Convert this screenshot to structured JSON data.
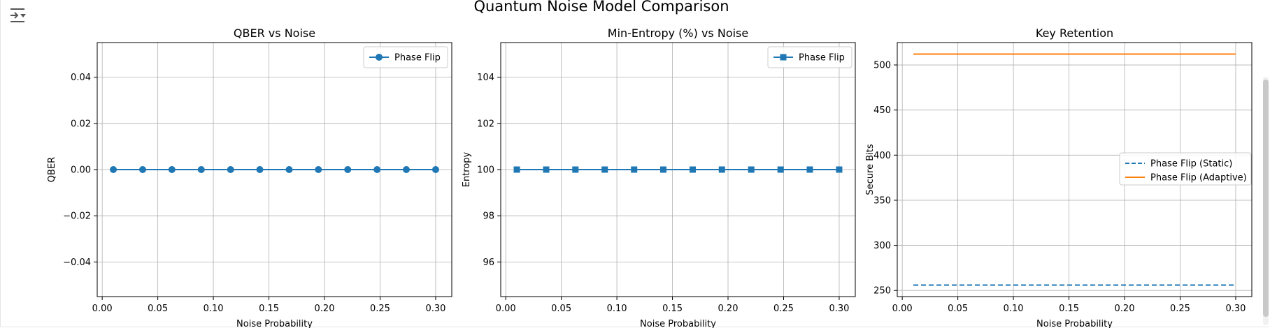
{
  "figure": {
    "suptitle": "Quantum Noise Model Comparison",
    "toolbar_icon": "output-collapse-icon"
  },
  "chart_data": [
    {
      "type": "line",
      "title": "QBER vs Noise",
      "xlabel": "Noise Probability",
      "ylabel": "QBER",
      "xlim": [
        -0.0045,
        0.3145
      ],
      "ylim": [
        -0.055,
        0.055
      ],
      "xticks": [
        0.0,
        0.05,
        0.1,
        0.15,
        0.2,
        0.25,
        0.3
      ],
      "yticks": [
        -0.04,
        -0.02,
        0.0,
        0.02,
        0.04
      ],
      "xtick_labels": [
        "0.00",
        "0.05",
        "0.10",
        "0.15",
        "0.20",
        "0.25",
        "0.30"
      ],
      "ytick_labels": [
        "−0.04",
        "−0.02",
        "0.00",
        "0.02",
        "0.04"
      ],
      "grid": true,
      "legend": "upper right",
      "x": [
        0.01,
        0.0364,
        0.0627,
        0.0891,
        0.1155,
        0.1418,
        0.1682,
        0.1945,
        0.2209,
        0.2473,
        0.2736,
        0.3
      ],
      "series": [
        {
          "name": "Phase Flip",
          "color": "#1f77b4",
          "marker": "circle",
          "linestyle": "solid",
          "values": [
            0,
            0,
            0,
            0,
            0,
            0,
            0,
            0,
            0,
            0,
            0,
            0
          ]
        }
      ]
    },
    {
      "type": "line",
      "title": "Min-Entropy (%) vs Noise",
      "xlabel": "Noise Probability",
      "ylabel": "Entropy",
      "xlim": [
        -0.0045,
        0.3145
      ],
      "ylim": [
        94.5,
        105.5
      ],
      "xticks": [
        0.0,
        0.05,
        0.1,
        0.15,
        0.2,
        0.25,
        0.3
      ],
      "yticks": [
        96,
        98,
        100,
        102,
        104
      ],
      "xtick_labels": [
        "0.00",
        "0.05",
        "0.10",
        "0.15",
        "0.20",
        "0.25",
        "0.30"
      ],
      "ytick_labels": [
        "96",
        "98",
        "100",
        "102",
        "104"
      ],
      "grid": true,
      "legend": "upper right",
      "x": [
        0.01,
        0.0364,
        0.0627,
        0.0891,
        0.1155,
        0.1418,
        0.1682,
        0.1945,
        0.2209,
        0.2473,
        0.2736,
        0.3
      ],
      "series": [
        {
          "name": "Phase Flip",
          "color": "#1f77b4",
          "marker": "square",
          "linestyle": "solid",
          "values": [
            100,
            100,
            100,
            100,
            100,
            100,
            100,
            100,
            100,
            100,
            100,
            100
          ]
        }
      ]
    },
    {
      "type": "line",
      "title": "Key Retention",
      "xlabel": "Noise Probability",
      "ylabel": "Secure Bits",
      "xlim": [
        -0.0045,
        0.3145
      ],
      "ylim": [
        243.2,
        524.8
      ],
      "xticks": [
        0.0,
        0.05,
        0.1,
        0.15,
        0.2,
        0.25,
        0.3
      ],
      "yticks": [
        250,
        300,
        350,
        400,
        450,
        500
      ],
      "xtick_labels": [
        "0.00",
        "0.05",
        "0.10",
        "0.15",
        "0.20",
        "0.25",
        "0.30"
      ],
      "ytick_labels": [
        "250",
        "300",
        "350",
        "400",
        "450",
        "500"
      ],
      "grid": true,
      "legend": "center right",
      "x": [
        0.01,
        0.3
      ],
      "series": [
        {
          "name": "Phase Flip (Static)",
          "color": "#1f77b4",
          "marker": "none",
          "linestyle": "dashed",
          "values": [
            256,
            256
          ]
        },
        {
          "name": "Phase Flip (Adaptive)",
          "color": "#ff7f0e",
          "marker": "none",
          "linestyle": "solid",
          "values": [
            512,
            512
          ]
        }
      ]
    }
  ]
}
